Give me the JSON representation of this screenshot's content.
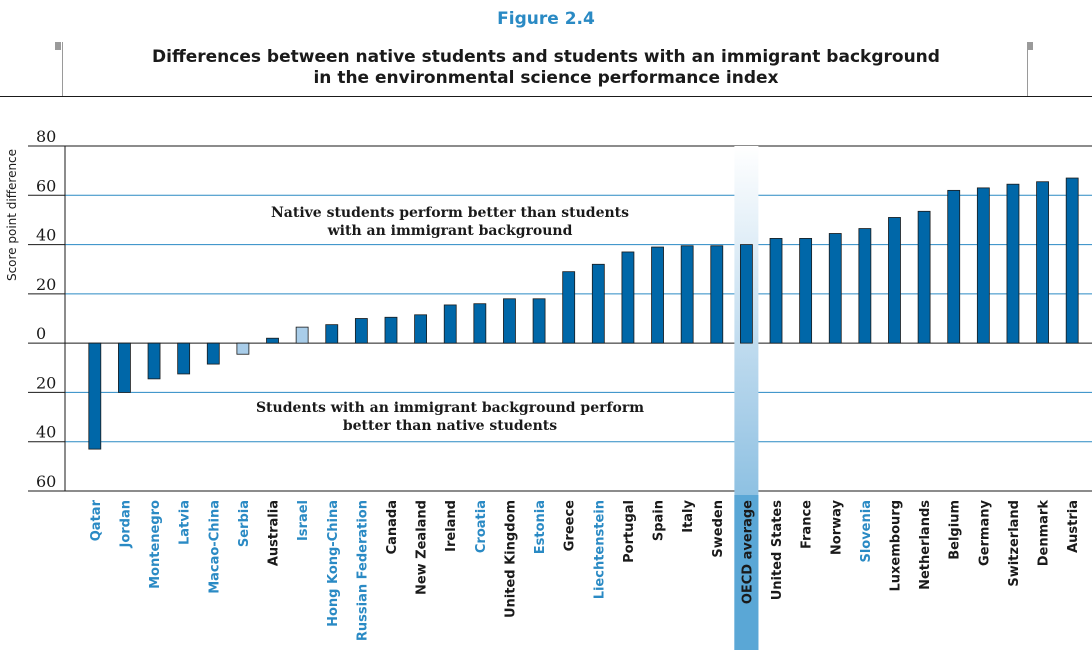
{
  "figure": {
    "label": "Figure 2.4",
    "title_line1": "Differences between native students and students with an immigrant background",
    "title_line2": "in the environmental science performance index"
  },
  "colors": {
    "accent": "#2a8ac4",
    "bar_dark": "#0067a8",
    "bar_light": "#a9cde9",
    "highlight_text": "#2a8ac4",
    "gridline": "#2a8ac4",
    "average_band": "#5aa7d6"
  },
  "chart_data": {
    "type": "bar",
    "title": "Differences between native students and students with an immigrant background in the environmental science performance index",
    "ylabel": "Score point difference",
    "ylim": [
      -60,
      80
    ],
    "yticks": [
      80,
      60,
      40,
      20,
      0,
      -20,
      -40,
      -60
    ],
    "ytick_labels": [
      "80",
      "60",
      "40",
      "20",
      "0",
      "20",
      "40",
      "60"
    ],
    "grid": true,
    "categories": [
      "Qatar",
      "Jordan",
      "Montenegro",
      "Latvia",
      "Macao-China",
      "Serbia",
      "Australia",
      "Israel",
      "Hong Kong-China",
      "Russian Federation",
      "Canada",
      "New Zealand",
      "Ireland",
      "Croatia",
      "United Kingdom",
      "Estonia",
      "Greece",
      "Liechtenstein",
      "Portugal",
      "Spain",
      "Italy",
      "Sweden",
      "OECD average",
      "United States",
      "France",
      "Norway",
      "Slovenia",
      "Luxembourg",
      "Netherlands",
      "Belgium",
      "Germany",
      "Switzerland",
      "Denmark",
      "Austria"
    ],
    "values": [
      -43,
      -20,
      -14.5,
      -12.5,
      -8.5,
      -4.5,
      2,
      6.5,
      7.5,
      10,
      10.5,
      11.5,
      15.5,
      16,
      18,
      18,
      29,
      32,
      37,
      39,
      39.5,
      39.5,
      40,
      42.5,
      42.5,
      44.5,
      46.5,
      51,
      53.5,
      62,
      63,
      64.5,
      65.5,
      67
    ],
    "significant": [
      true,
      true,
      true,
      true,
      true,
      false,
      true,
      false,
      true,
      true,
      true,
      true,
      true,
      true,
      true,
      true,
      true,
      true,
      true,
      true,
      true,
      true,
      true,
      true,
      true,
      true,
      true,
      true,
      true,
      true,
      true,
      true,
      true,
      true
    ],
    "partner_economy": [
      true,
      true,
      true,
      true,
      true,
      true,
      false,
      true,
      true,
      true,
      false,
      false,
      false,
      true,
      false,
      true,
      false,
      true,
      false,
      false,
      false,
      false,
      false,
      false,
      false,
      false,
      true,
      false,
      false,
      false,
      false,
      false,
      false,
      false
    ],
    "annotations": {
      "above_line1": "Native students perform better than students",
      "above_line2": "with an immigrant background",
      "below_line1": "Students with an immigrant background perform",
      "below_line2": "better than native students"
    }
  }
}
